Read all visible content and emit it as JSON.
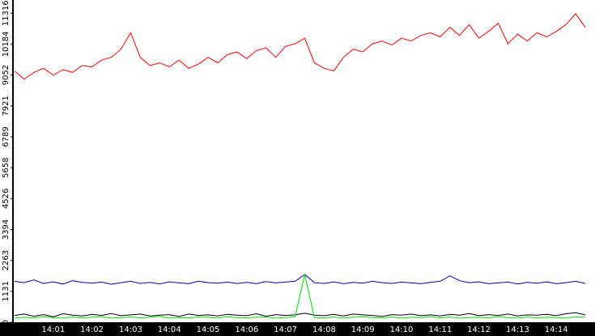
{
  "chart_data": {
    "type": "line",
    "categories": [
      null,
      null,
      null,
      null,
      "14:01",
      null,
      null,
      null,
      "14:02",
      null,
      null,
      null,
      "14:03",
      null,
      null,
      null,
      "14:04",
      null,
      null,
      null,
      "14:05",
      null,
      null,
      null,
      "14:06",
      null,
      null,
      null,
      "14:07",
      null,
      null,
      null,
      "14:08",
      null,
      null,
      null,
      "14:09",
      null,
      null,
      null,
      "14:10",
      null,
      null,
      null,
      "14:11",
      null,
      null,
      null,
      "14:12",
      null,
      null,
      null,
      "14:13",
      null,
      null,
      null,
      "14:14",
      null,
      null,
      null
    ],
    "series": [
      {
        "name": "red",
        "color": "#ff0000",
        "values": [
          9200,
          8900,
          9150,
          9300,
          9050,
          9250,
          9150,
          9400,
          9350,
          9600,
          9700,
          10000,
          10600,
          9700,
          9400,
          9500,
          9350,
          9600,
          9300,
          9450,
          9700,
          9500,
          9800,
          9900,
          9650,
          9950,
          10050,
          9700,
          10100,
          10200,
          10400,
          9500,
          9300,
          9200,
          9700,
          10000,
          9900,
          10200,
          10300,
          10150,
          10400,
          10300,
          10500,
          10600,
          10450,
          10800,
          10500,
          10900,
          10400,
          10650,
          10950,
          10200,
          10550,
          10300,
          10600,
          10450,
          10650,
          10900,
          11300,
          10800
        ]
      },
      {
        "name": "blue",
        "color": "#0000c0",
        "values": [
          1500,
          1450,
          1550,
          1420,
          1480,
          1400,
          1520,
          1460,
          1430,
          1470,
          1390,
          1450,
          1500,
          1420,
          1460,
          1400,
          1480,
          1440,
          1410,
          1500,
          1450,
          1430,
          1470,
          1420,
          1460,
          1410,
          1490,
          1440,
          1470,
          1500,
          1750,
          1450,
          1420,
          1480,
          1410,
          1460,
          1430,
          1500,
          1450,
          1420,
          1470,
          1440,
          1410,
          1460,
          1500,
          1700,
          1520,
          1450,
          1480,
          1410,
          1440,
          1470,
          1400,
          1460,
          1430,
          1480,
          1410,
          1450,
          1500,
          1420
        ]
      },
      {
        "name": "black",
        "color": "#000000",
        "values": [
          250,
          300,
          220,
          280,
          200,
          310,
          260,
          230,
          290,
          250,
          320,
          240,
          270,
          300,
          230,
          260,
          280,
          210,
          300,
          250,
          270,
          230,
          290,
          260,
          240,
          310,
          220,
          280,
          250,
          270,
          330,
          260,
          240,
          290,
          230,
          300,
          270,
          250,
          210,
          280,
          260,
          300,
          240,
          270,
          230,
          290,
          260,
          320,
          240,
          280,
          250,
          300,
          230,
          270,
          260,
          290,
          240,
          310,
          350,
          270
        ]
      },
      {
        "name": "green",
        "color": "#00e000",
        "values": [
          150,
          180,
          160,
          200,
          170,
          150,
          190,
          160,
          180,
          200,
          150,
          170,
          190,
          160,
          180,
          210,
          150,
          170,
          160,
          190,
          180,
          150,
          200,
          170,
          160,
          180,
          190,
          150,
          170,
          200,
          1750,
          170,
          160,
          190,
          150,
          180,
          200,
          170,
          160,
          190,
          150,
          180,
          170,
          200,
          160,
          190,
          150,
          170,
          180,
          160,
          200,
          170,
          150,
          190,
          160,
          180,
          170,
          150,
          200,
          180
        ]
      }
    ],
    "ylim": [
      0,
      11800
    ],
    "yticks": [
      0,
      1131,
      2263,
      3394,
      4526,
      5658,
      6789,
      7921,
      9052,
      10184,
      11316
    ]
  }
}
